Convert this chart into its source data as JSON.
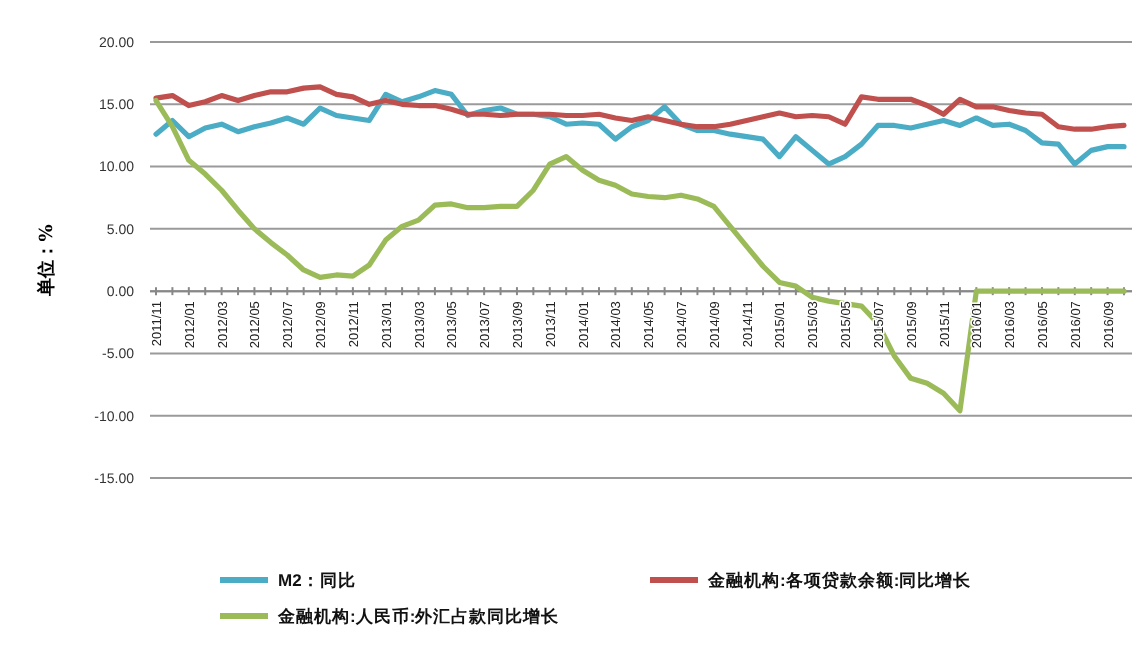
{
  "chart_data": {
    "type": "line",
    "ylabel": "单位：%",
    "categories": [
      "2011/11",
      null,
      "2012/01",
      null,
      "2012/03",
      null,
      "2012/05",
      null,
      "2012/07",
      null,
      "2012/09",
      null,
      "2012/11",
      null,
      "2013/01",
      null,
      "2013/03",
      null,
      "2013/05",
      null,
      "2013/07",
      null,
      "2013/09",
      null,
      "2013/11",
      null,
      "2014/01",
      null,
      "2014/03",
      null,
      "2014/05",
      null,
      "2014/07",
      null,
      "2014/09",
      null,
      "2014/11",
      null,
      "2015/01",
      null,
      "2015/03",
      null,
      "2015/05",
      null,
      "2015/07",
      null,
      "2015/09",
      null,
      "2015/11",
      null,
      "2016/01",
      null,
      "2016/03",
      null,
      "2016/05",
      null,
      "2016/07",
      null,
      "2016/09",
      null
    ],
    "series": [
      {
        "name": "M2：同比",
        "color": "#4bacc6",
        "values": [
          12.6,
          13.7,
          12.4,
          13.1,
          13.4,
          12.8,
          13.2,
          13.5,
          13.9,
          13.4,
          14.7,
          14.1,
          13.9,
          13.7,
          15.8,
          15.2,
          15.6,
          16.1,
          15.8,
          14.1,
          14.5,
          14.7,
          14.2,
          14.2,
          14.0,
          13.4,
          13.5,
          13.4,
          12.2,
          13.2,
          13.7,
          14.8,
          13.4,
          12.9,
          12.9,
          12.6,
          12.4,
          12.2,
          10.8,
          12.4,
          11.3,
          10.2,
          10.8,
          11.8,
          13.3,
          13.3,
          13.1,
          13.4,
          13.7,
          13.3,
          13.9,
          13.3,
          13.4,
          12.9,
          11.9,
          11.8,
          10.2,
          11.3,
          11.6,
          11.6
        ]
      },
      {
        "name": "金融机构:各项贷款余额:同比增长",
        "color": "#c0504d",
        "values": [
          15.5,
          15.7,
          14.9,
          15.2,
          15.7,
          15.3,
          15.7,
          16.0,
          16.0,
          16.3,
          16.4,
          15.8,
          15.6,
          15.0,
          15.3,
          15.0,
          14.9,
          14.9,
          14.6,
          14.2,
          14.2,
          14.1,
          14.2,
          14.2,
          14.2,
          14.1,
          14.1,
          14.2,
          13.9,
          13.7,
          14.0,
          13.7,
          13.4,
          13.2,
          13.2,
          13.4,
          13.7,
          14.0,
          14.3,
          14.0,
          14.1,
          14.0,
          13.4,
          15.6,
          15.4,
          15.4,
          15.4,
          14.9,
          14.2,
          15.4,
          14.8,
          14.8,
          14.5,
          14.3,
          14.2,
          13.2,
          13.0,
          13.0,
          13.2,
          13.3
        ]
      },
      {
        "name": "金融机构:人民币:外汇占款同比增长",
        "color": "#9bbb59",
        "values": [
          15.3,
          13.2,
          10.5,
          9.4,
          8.1,
          6.5,
          5.0,
          3.9,
          2.9,
          1.7,
          1.1,
          1.3,
          1.2,
          2.1,
          4.1,
          5.2,
          5.7,
          6.9,
          7.0,
          6.7,
          6.7,
          6.8,
          6.8,
          8.1,
          10.2,
          10.8,
          9.7,
          8.9,
          8.5,
          7.8,
          7.6,
          7.5,
          7.7,
          7.4,
          6.8,
          5.2,
          3.6,
          2.0,
          0.7,
          0.4,
          -0.5,
          -0.8,
          -1.0,
          -1.2,
          -2.6,
          -5.2,
          -7.0,
          -7.4,
          -8.2,
          -9.6,
          0.0,
          0.0,
          0.0,
          0.0,
          0.0,
          0.0,
          0.0,
          0.0,
          0.0,
          0.0
        ]
      }
    ],
    "ylim": [
      -15,
      20
    ],
    "yticks": [
      {
        "value": -15,
        "label": "-15.00"
      },
      {
        "value": -10,
        "label": "-10.00"
      },
      {
        "value": -5,
        "label": "-5.00"
      },
      {
        "value": 0,
        "label": "0.00"
      },
      {
        "value": 5,
        "label": "5.00"
      },
      {
        "value": 10,
        "label": "10.00"
      },
      {
        "value": 15,
        "label": "15.00"
      },
      {
        "value": 20,
        "label": "20.00"
      }
    ],
    "grid": "y",
    "legend": "bottom",
    "marker": "none",
    "line_style": "solid"
  }
}
